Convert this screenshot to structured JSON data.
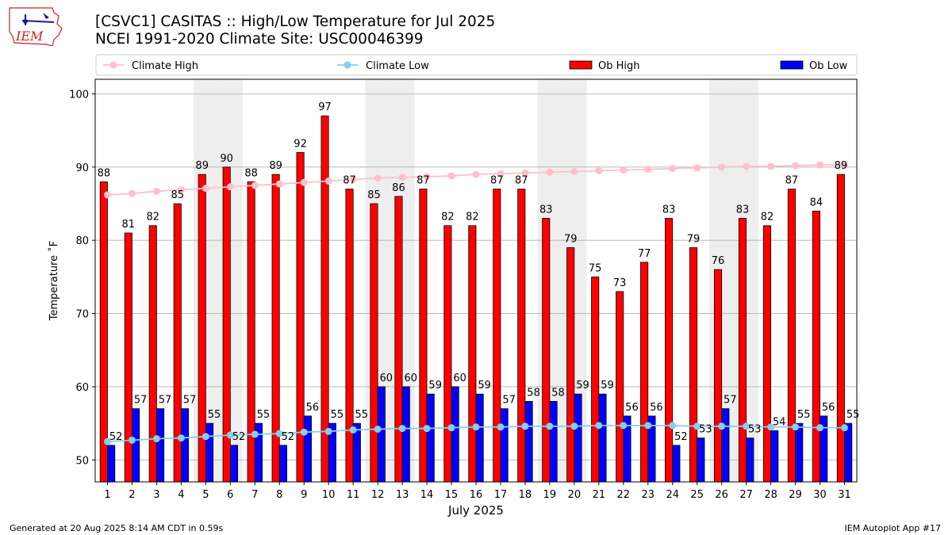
{
  "header": {
    "title_line1": "[CSVC1] CASITAS :: High/Low Temperature for Jul 2025",
    "title_line2": "NCEI 1991-2020 Climate Site: USC00046399",
    "logo_text": "IEM"
  },
  "footer": {
    "left": "Generated at 20 Aug 2025 8:14 AM CDT in 0.59s",
    "right": "IEM Autoplot App #17"
  },
  "chart_data": {
    "type": "bar",
    "xlabel": "July 2025",
    "ylabel": "Temperature $^\\circ$F",
    "ylabel_display": "Temperature ˚F",
    "ylim": [
      47,
      102
    ],
    "yticks": [
      50,
      60,
      70,
      80,
      90,
      100
    ],
    "grid": true,
    "legend_position": "top",
    "weekend_days": [
      5,
      6,
      12,
      13,
      19,
      20,
      26,
      27
    ],
    "categories": [
      "1",
      "2",
      "3",
      "4",
      "5",
      "6",
      "7",
      "8",
      "9",
      "10",
      "11",
      "12",
      "13",
      "14",
      "15",
      "16",
      "17",
      "18",
      "19",
      "20",
      "21",
      "22",
      "23",
      "24",
      "25",
      "26",
      "27",
      "28",
      "29",
      "30",
      "31"
    ],
    "series": [
      {
        "name": "Ob High",
        "kind": "bar",
        "color": "#ff0000",
        "values": [
          88,
          81,
          82,
          85,
          89,
          90,
          88,
          89,
          92,
          97,
          87,
          85,
          86,
          87,
          82,
          82,
          87,
          87,
          83,
          79,
          75,
          73,
          77,
          83,
          79,
          76,
          83,
          82,
          87,
          84,
          89
        ]
      },
      {
        "name": "Ob Low",
        "kind": "bar",
        "color": "#0000ff",
        "values": [
          52,
          57,
          57,
          57,
          55,
          52,
          55,
          52,
          56,
          55,
          55,
          60,
          60,
          59,
          60,
          59,
          57,
          58,
          58,
          59,
          59,
          56,
          56,
          52,
          53,
          57,
          53,
          54,
          55,
          56,
          55
        ]
      },
      {
        "name": "Climate High",
        "kind": "line",
        "color": "#ffc0cb",
        "values": [
          86.2,
          86.4,
          86.7,
          86.9,
          87.1,
          87.3,
          87.5,
          87.7,
          87.9,
          88.1,
          88.3,
          88.5,
          88.6,
          88.7,
          88.8,
          89.0,
          89.1,
          89.2,
          89.3,
          89.4,
          89.5,
          89.6,
          89.7,
          89.8,
          89.9,
          90.0,
          90.1,
          90.1,
          90.2,
          90.3,
          90.3
        ]
      },
      {
        "name": "Climate Low",
        "kind": "line",
        "color": "#87ceeb",
        "values": [
          52.5,
          52.7,
          52.9,
          53.0,
          53.2,
          53.4,
          53.5,
          53.6,
          53.8,
          53.9,
          54.1,
          54.2,
          54.3,
          54.3,
          54.4,
          54.5,
          54.5,
          54.6,
          54.6,
          54.6,
          54.7,
          54.7,
          54.7,
          54.7,
          54.6,
          54.6,
          54.6,
          54.5,
          54.5,
          54.4,
          54.4
        ]
      }
    ]
  }
}
